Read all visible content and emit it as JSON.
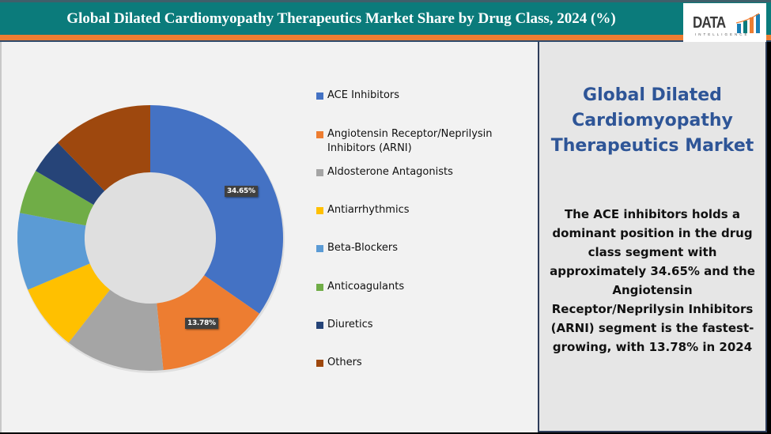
{
  "header": {
    "title": "Global Dilated Cardiomyopathy Therapeutics Market Share by Drug Class, 2024 (%)",
    "logo_text": "DATA",
    "logo_subtext": "INTELLIGENCE"
  },
  "colors": {
    "header_bg": "#0b7b7b",
    "accent_bar": "#ed7d31",
    "right_title": "#2e5597"
  },
  "chart_data": {
    "type": "pie",
    "variant": "doughnut",
    "title": "Global Dilated Cardiomyopathy Therapeutics Market Share by Drug Class, 2024 (%)",
    "categories": [
      "ACE Inhibitors",
      "Angiotensin Receptor/Neprilysin Inhibitors (ARNI)",
      "Aldosterone Antagonists",
      "Antiarrhythmics",
      "Beta-Blockers",
      "Anticoagulants",
      "Diuretics",
      "Others"
    ],
    "values": [
      34.65,
      13.78,
      12.1,
      8.1,
      9.4,
      5.4,
      4.3,
      12.27
    ],
    "colors": [
      "#4472c4",
      "#ed7d31",
      "#a5a5a5",
      "#ffc000",
      "#5b9bd5",
      "#70ad47",
      "#264478",
      "#9e480e"
    ],
    "data_labels": [
      "34.65%",
      "13.78%",
      "",
      "",
      "",
      "",
      "",
      ""
    ],
    "legend_position": "right",
    "start_angle": 0
  },
  "legend": {
    "items": [
      {
        "label": "ACE Inhibitors",
        "color": "#4472c4"
      },
      {
        "label": "Angiotensin Receptor/Neprilysin Inhibitors (ARNI)",
        "color": "#ed7d31"
      },
      {
        "label": "Aldosterone Antagonists",
        "color": "#a5a5a5"
      },
      {
        "label": "Antiarrhythmics",
        "color": "#ffc000"
      },
      {
        "label": "Beta-Blockers",
        "color": "#5b9bd5"
      },
      {
        "label": "Anticoagulants",
        "color": "#70ad47"
      },
      {
        "label": "Diuretics",
        "color": "#264478"
      },
      {
        "label": "Others",
        "color": "#9e480e"
      }
    ]
  },
  "right_panel": {
    "title": "Global Dilated Cardiomyopathy Therapeutics Market",
    "body": "The ACE inhibitors holds a dominant position in the drug class segment with approximately 34.65% and the Angiotensin Receptor/Neprilysin Inhibitors (ARNI) segment is the fastest-growing, with 13.78% in 2024"
  }
}
